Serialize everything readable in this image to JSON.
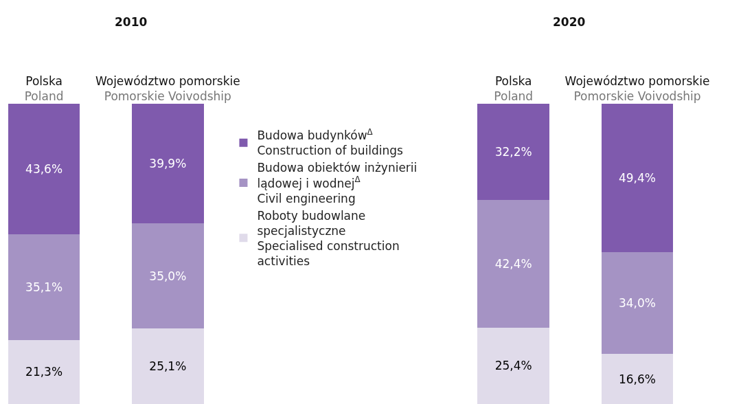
{
  "chart_data": [
    {
      "type": "bar",
      "title": "2010",
      "categories": [
        "Polska\nPoland",
        "Województwo pomorskie\nPomorskie Voivodship"
      ],
      "stacked": true,
      "ylim": [
        0,
        100
      ],
      "tick_labels": "x",
      "legend": "right",
      "series": [
        {
          "name": "Roboty budowlane\nspecjalistyczne\nSpecialised construction\nactivities",
          "color": "#e0dbea",
          "values": [
            21.3,
            25.1
          ],
          "value_labels": [
            "21,3%",
            "25,1%"
          ]
        },
        {
          "name": "Budowa obiektów inżynierii\nlądowej i wodnej$^{Δ}$\nCivil engineering",
          "color": "#a593c4",
          "values": [
            35.1,
            35.0
          ],
          "value_labels": [
            "35,1%",
            "35,0%"
          ]
        },
        {
          "name": "Budowa budynków$^{Δ}$\nConstruction of buildings",
          "color": "#7f5aad",
          "values": [
            43.6,
            39.9
          ],
          "value_labels": [
            "43,6%",
            "39,9%"
          ]
        }
      ]
    },
    {
      "type": "bar",
      "title": "2020",
      "categories": [
        "Polska\nPoland",
        "Województwo pomorskie\nPomorskie Voivodship"
      ],
      "stacked": true,
      "ylim": [
        0,
        100
      ],
      "tick_labels": "x",
      "legend": false,
      "series": [
        {
          "color": "#e0dbea",
          "values": [
            25.4,
            16.6
          ],
          "value_labels": [
            "25,4%",
            "16,6%"
          ]
        },
        {
          "color": "#a593c4",
          "values": [
            42.4,
            34.0
          ],
          "value_labels": [
            "42,4%",
            "34,0%"
          ]
        },
        {
          "color": "#7f5aad",
          "values": [
            32.2,
            49.4
          ],
          "value_labels": [
            "32,2%",
            "49,4%"
          ]
        }
      ]
    }
  ]
}
